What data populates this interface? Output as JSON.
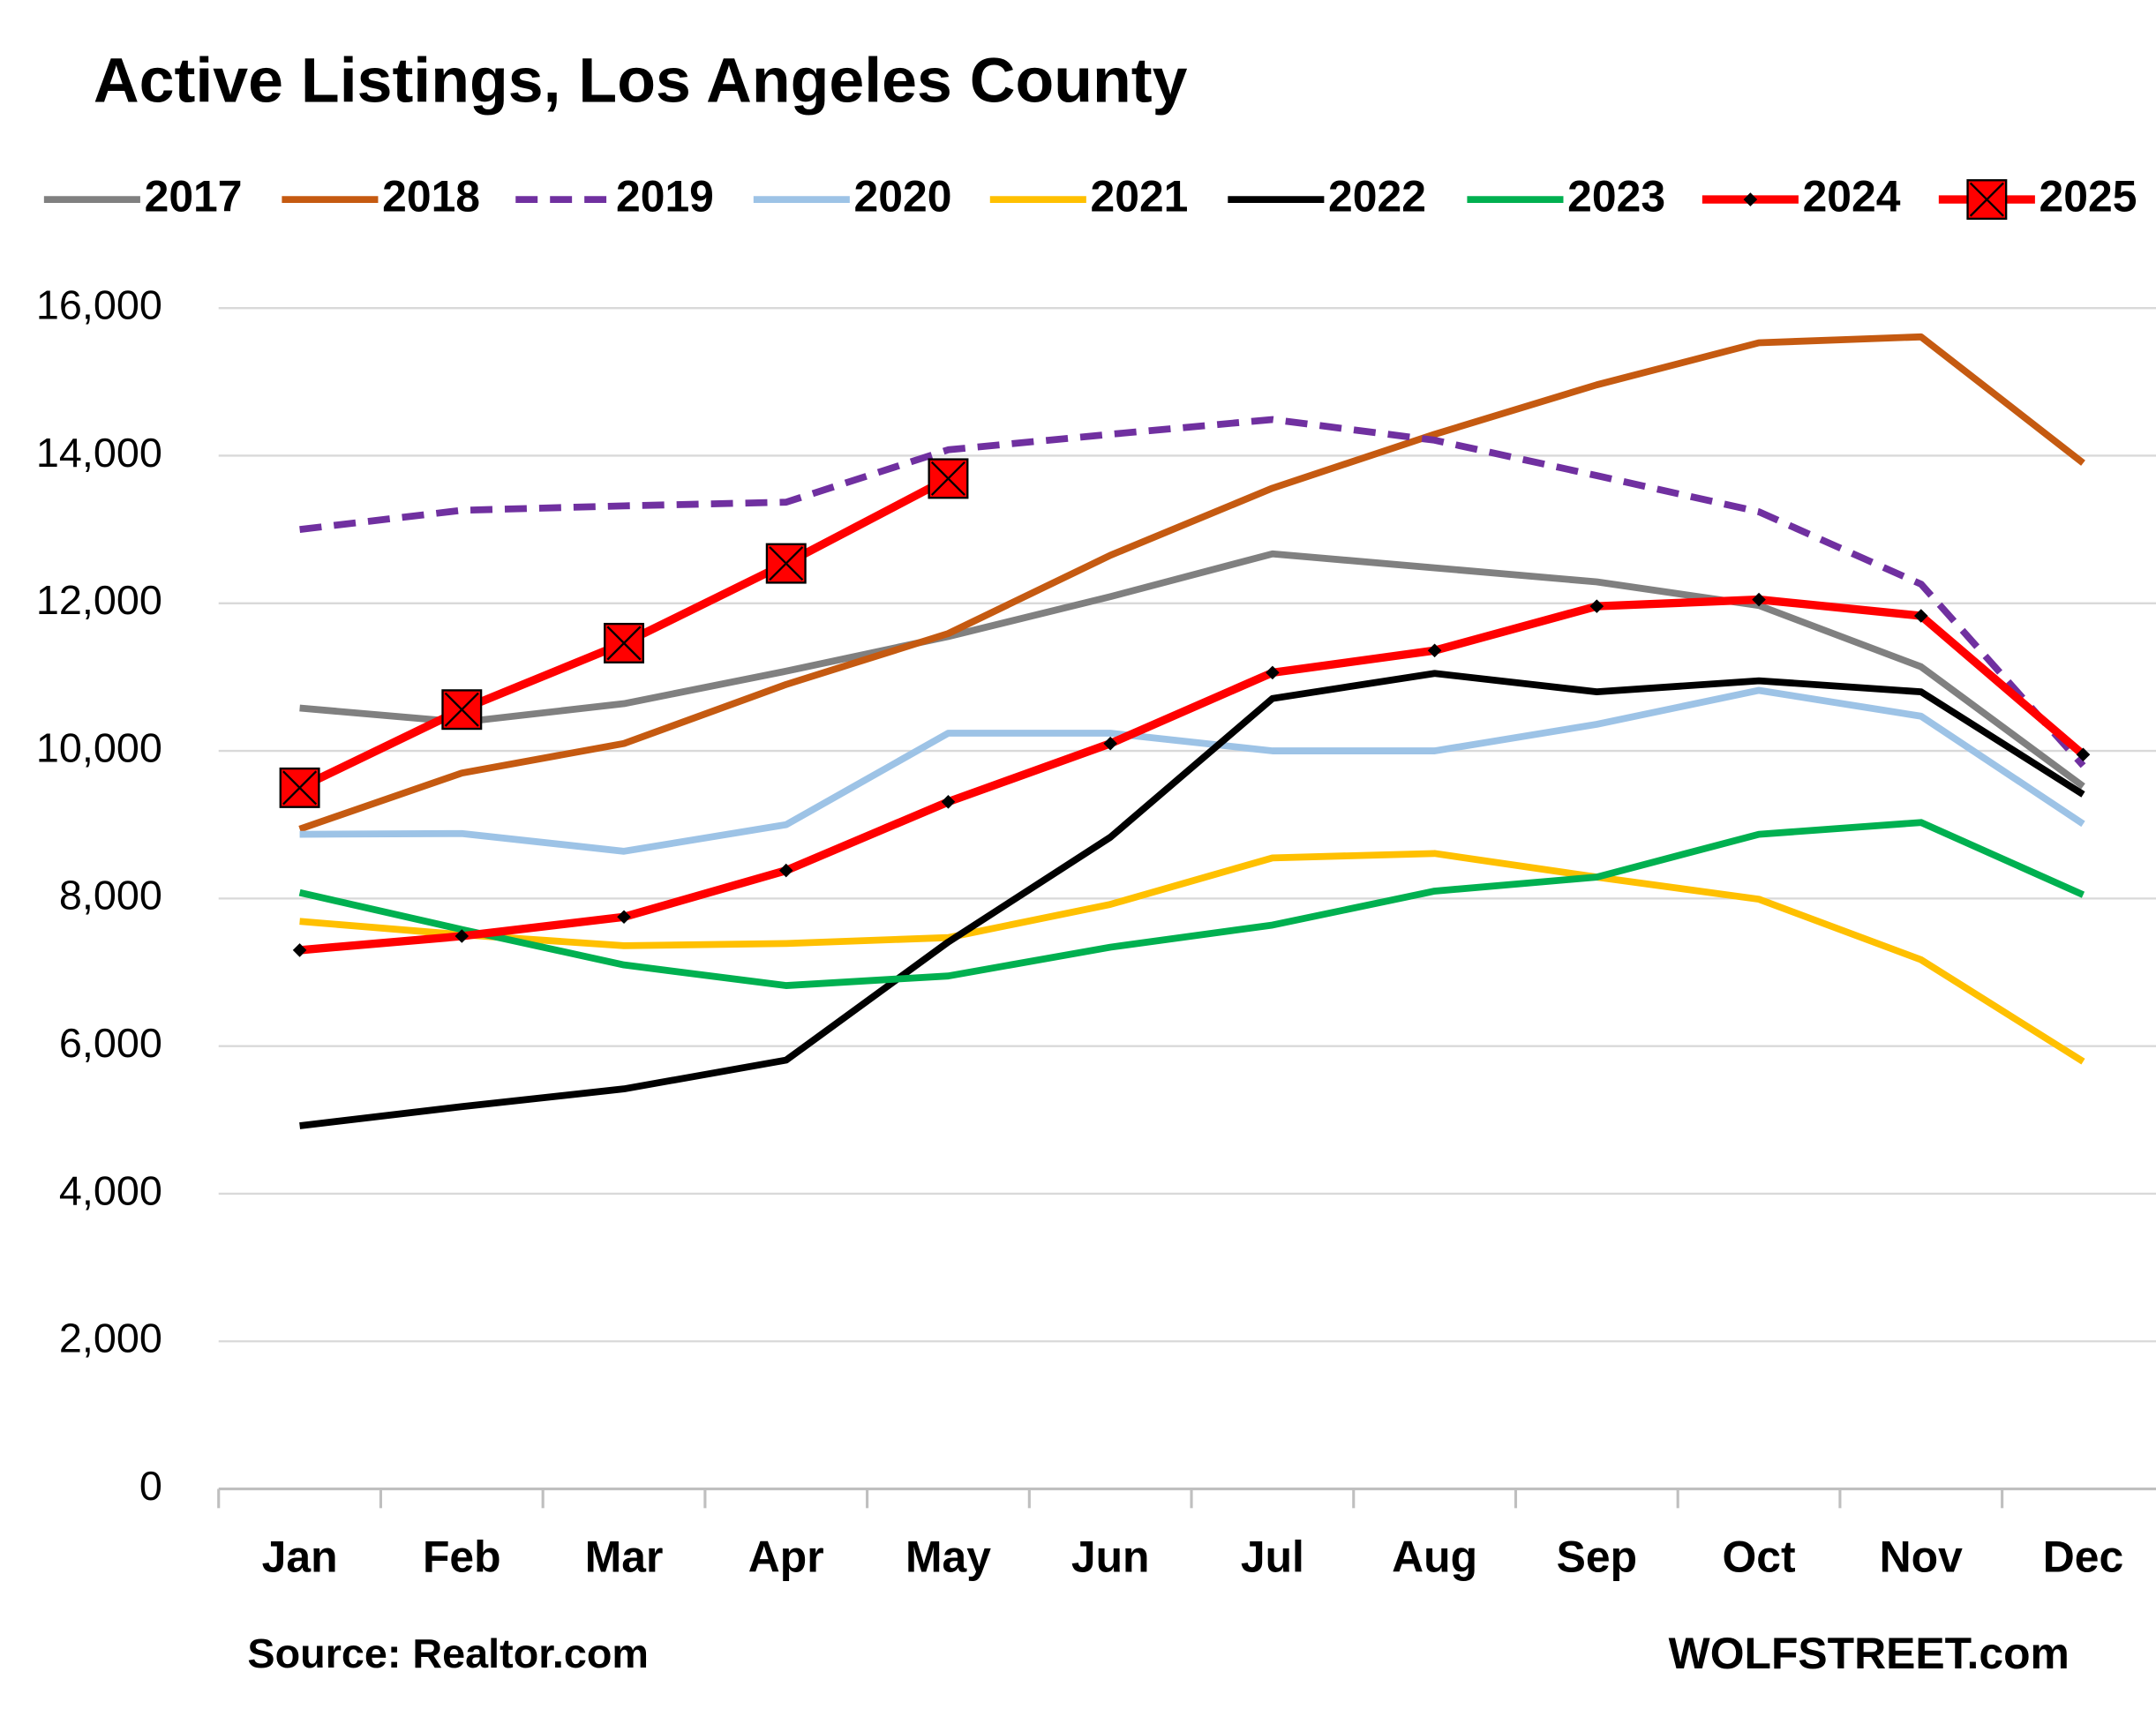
{
  "chart_data": {
    "type": "line",
    "title": "Active Listings, Los Angeles County",
    "categories": [
      "Jan",
      "Feb",
      "Mar",
      "Apr",
      "May",
      "Jun",
      "Jul",
      "Aug",
      "Sep",
      "Oct",
      "Nov",
      "Dec"
    ],
    "ylim": [
      0,
      16000
    ],
    "yticks": [
      0,
      {
        "value": 2000,
        "label": "2,000"
      },
      {
        "value": 4000,
        "label": "4,000"
      },
      {
        "value": 6000,
        "label": "6,000"
      },
      {
        "value": 8000,
        "label": "8,000"
      },
      {
        "value": 10000,
        "label": "10,000"
      },
      {
        "value": 12000,
        "label": "12,000"
      },
      {
        "value": 14000,
        "label": "14,000"
      },
      {
        "value": 16000,
        "label": "16,000"
      }
    ],
    "grid": true,
    "legend": "top",
    "annotations": [
      "Source: Realtor.com",
      "WOLFSTREET.com"
    ],
    "series": [
      {
        "name": "2017",
        "color": "#808080",
        "values": [
          10580,
          10390,
          10640,
          11080,
          11550,
          12090,
          12670,
          12480,
          12290,
          11970,
          11140,
          9520
        ]
      },
      {
        "name": "2018",
        "color": "#c55a11",
        "values": [
          8940,
          9700,
          10100,
          10900,
          11590,
          12650,
          13560,
          14290,
          14960,
          15530,
          15610,
          13900
        ]
      },
      {
        "name": "2019",
        "color": "#7030a0",
        "dash": true,
        "values": [
          13000,
          13260,
          13320,
          13370,
          14080,
          14290,
          14490,
          14210,
          13730,
          13240,
          12260,
          9800
        ]
      },
      {
        "name": "2020",
        "color": "#9dc3e6",
        "values": [
          8870,
          8880,
          8640,
          9000,
          10240,
          10240,
          10000,
          10000,
          10360,
          10820,
          10470,
          9010
        ]
      },
      {
        "name": "2021",
        "color": "#ffc000",
        "values": [
          7690,
          7510,
          7360,
          7390,
          7470,
          7920,
          8550,
          8610,
          8290,
          7990,
          7170,
          5790
        ]
      },
      {
        "name": "2022",
        "color": "#000000",
        "values": [
          4920,
          5180,
          5420,
          5810,
          7410,
          8830,
          10710,
          11050,
          10800,
          10950,
          10800,
          9410
        ]
      },
      {
        "name": "2023",
        "color": "#00b050",
        "values": [
          8080,
          7580,
          7100,
          6820,
          6950,
          7340,
          7640,
          8100,
          8290,
          8870,
          9030,
          8050
        ]
      },
      {
        "name": "2024",
        "color": "#ff0000",
        "marker": "diamond",
        "values": [
          7300,
          7490,
          7750,
          8380,
          9310,
          10100,
          11060,
          11360,
          11960,
          12050,
          11830,
          9950
        ]
      },
      {
        "name": "2025",
        "color": "#ff0000",
        "marker": "square-x",
        "values": [
          9500,
          10560,
          11460,
          12540,
          13690,
          null,
          null,
          null,
          null,
          null,
          null,
          null
        ]
      }
    ]
  }
}
